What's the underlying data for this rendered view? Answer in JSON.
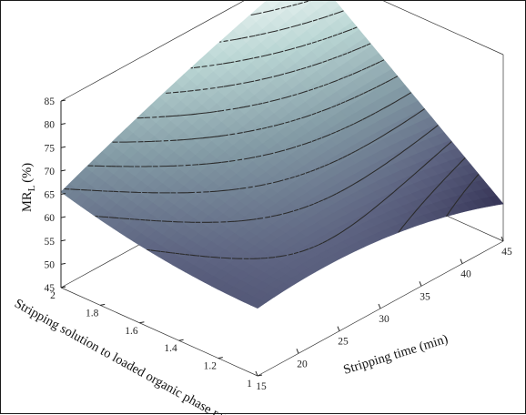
{
  "chart_data": {
    "type": "surface",
    "title": "",
    "xlabel": "Stripping time (min)",
    "ylabel": "Stripping solution to loaded organic phase ratio",
    "zlabel_main": "MR",
    "zlabel_sub": "L",
    "zlabel_unit": "(%)",
    "x_ticks": [
      "15",
      "20",
      "25",
      "30",
      "35",
      "40",
      "45"
    ],
    "y_ticks": [
      "1",
      "1.2",
      "1.4",
      "1.6",
      "1.8",
      "2"
    ],
    "z_ticks": [
      "45",
      "50",
      "55",
      "60",
      "65",
      "70",
      "75",
      "80",
      "85"
    ],
    "xlim": [
      15,
      45
    ],
    "ylim": [
      1,
      2
    ],
    "zlim": [
      45,
      85
    ],
    "grid": false,
    "colormap": "bone",
    "contour_style": "dashed",
    "surface_corners": [
      {
        "x": 15,
        "y": 1,
        "z": 59.5
      },
      {
        "x": 45,
        "y": 1,
        "z": 53
      },
      {
        "x": 45,
        "y": 2,
        "z": 85
      },
      {
        "x": 15,
        "y": 2,
        "z": 65.5
      }
    ]
  }
}
